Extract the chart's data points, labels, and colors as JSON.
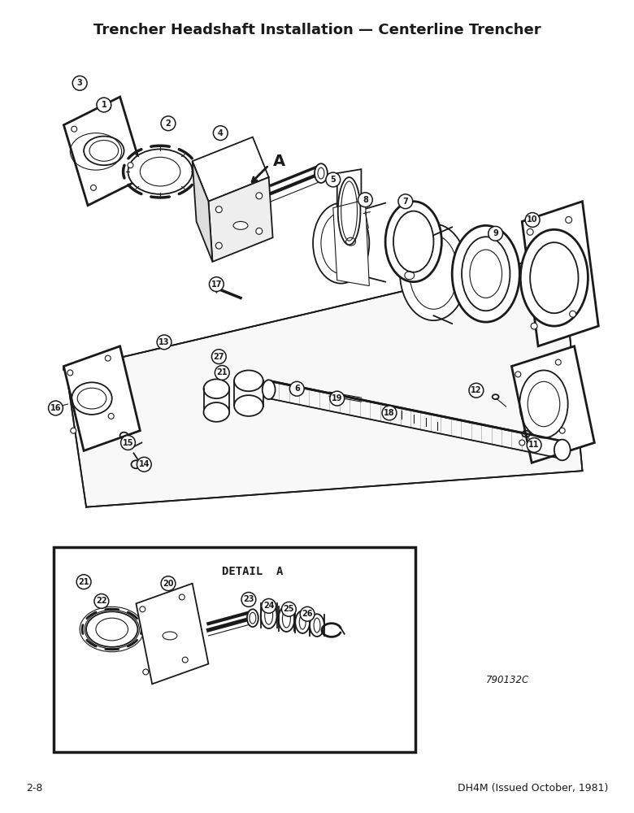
{
  "title": "Trencher Headshaft Installation — Centerline Trencher",
  "title_fontsize": 13,
  "footer_left": "2-8",
  "footer_right": "DH4M (Issued October, 1981)",
  "footer_fontsize": 9,
  "diagram_number": "790132C",
  "detail_label": "DETAIL  A",
  "background_color": "#ffffff",
  "line_color": "#1a1a1a"
}
